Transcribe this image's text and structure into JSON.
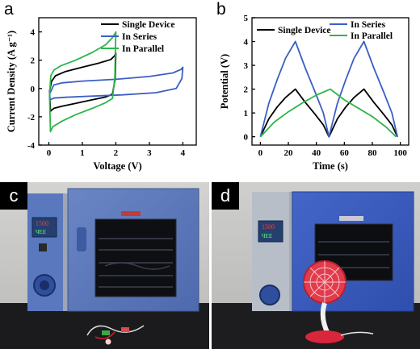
{
  "panels": {
    "a": "a",
    "b": "b",
    "c": "c",
    "d": "d"
  },
  "oven_display": {
    "c": {
      "top": "1500",
      "bottom": "ЧЕЕ"
    },
    "d": {
      "top": "1500",
      "bottom": "ЧЕЕ"
    }
  },
  "chart_data": [
    {
      "type": "line",
      "panel": "a",
      "xlabel": "Voltage (V)",
      "ylabel": "Current Density (A g⁻¹)",
      "xlim": [
        -0.3,
        4.4
      ],
      "ylim": [
        -4,
        5
      ],
      "xticks": [
        "0",
        "1",
        "2",
        "3",
        "4"
      ],
      "yticks": [
        "-4",
        "-2",
        "0",
        "2",
        "4"
      ],
      "legend": "top-right",
      "series": [
        {
          "name": "Single Device",
          "color": "#000000",
          "x": [
            0.02,
            0.08,
            0.2,
            0.5,
            1.0,
            1.5,
            1.85,
            1.96,
            2.0,
            1.98,
            1.9,
            1.7,
            1.3,
            0.8,
            0.4,
            0.15,
            0.05,
            0.02
          ],
          "y": [
            -0.2,
            0.5,
            0.9,
            1.2,
            1.5,
            1.8,
            2.05,
            2.3,
            2.5,
            0.7,
            -0.4,
            -0.6,
            -0.8,
            -1.05,
            -1.25,
            -1.4,
            -1.6,
            -0.2
          ]
        },
        {
          "name": "In Series",
          "color": "#3b5fc4",
          "x": [
            0.02,
            0.15,
            0.4,
            1.0,
            2.0,
            3.0,
            3.7,
            3.95,
            4.0,
            3.97,
            3.8,
            3.2,
            2.2,
            1.2,
            0.5,
            0.15,
            0.04,
            0.02
          ],
          "y": [
            -0.4,
            0.25,
            0.4,
            0.52,
            0.65,
            0.85,
            1.1,
            1.35,
            1.5,
            0.7,
            0.0,
            -0.3,
            -0.45,
            -0.55,
            -0.62,
            -0.68,
            -0.8,
            -0.4
          ]
        },
        {
          "name": "In Parallel",
          "color": "#2db54a",
          "x": [
            0.02,
            0.06,
            0.15,
            0.35,
            0.8,
            1.3,
            1.7,
            1.9,
            1.98,
            2.0,
            1.97,
            1.9,
            1.7,
            1.3,
            0.8,
            0.4,
            0.12,
            0.05,
            0.02
          ],
          "y": [
            -0.5,
            0.9,
            1.3,
            1.6,
            2.0,
            2.55,
            3.1,
            3.6,
            3.9,
            4.0,
            0.8,
            -0.7,
            -1.0,
            -1.4,
            -1.85,
            -2.3,
            -2.7,
            -3.05,
            -0.5
          ]
        }
      ]
    },
    {
      "type": "line",
      "panel": "b",
      "xlabel": "Time (s)",
      "ylabel": "Potential (V)",
      "xlim": [
        -6,
        106
      ],
      "ylim": [
        -0.35,
        5
      ],
      "xticks": [
        "0",
        "20",
        "40",
        "60",
        "80",
        "100"
      ],
      "yticks": [
        "0",
        "1",
        "2",
        "3",
        "4",
        "5"
      ],
      "legend": "top",
      "series": [
        {
          "name": "Single Device",
          "color": "#000000",
          "x": [
            0,
            6,
            12,
            18,
            25,
            32,
            39,
            45,
            49,
            55,
            61,
            67,
            74,
            81,
            88,
            94,
            98
          ],
          "y": [
            0,
            0.75,
            1.25,
            1.65,
            2.0,
            1.45,
            0.95,
            0.5,
            0,
            0.75,
            1.25,
            1.65,
            2.0,
            1.45,
            0.95,
            0.5,
            0
          ]
        },
        {
          "name": "In Series",
          "color": "#3b5fc4",
          "x": [
            0,
            6,
            12,
            18,
            25,
            32,
            39,
            45,
            49,
            55,
            61,
            67,
            74,
            81,
            88,
            94,
            98
          ],
          "y": [
            0,
            1.4,
            2.4,
            3.3,
            4.0,
            2.9,
            1.9,
            1.0,
            0,
            1.4,
            2.4,
            3.3,
            4.0,
            2.9,
            1.9,
            1.0,
            0
          ]
        },
        {
          "name": "In Parallel",
          "color": "#2db54a",
          "x": [
            0,
            10,
            20,
            30,
            40,
            50,
            60,
            70,
            80,
            90,
            97
          ],
          "y": [
            0,
            0.62,
            1.05,
            1.42,
            1.75,
            2.0,
            1.55,
            1.2,
            0.85,
            0.4,
            0
          ]
        }
      ]
    }
  ]
}
